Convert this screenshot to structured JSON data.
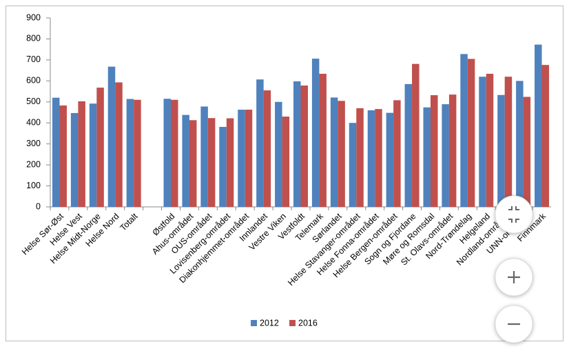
{
  "chart_data": {
    "type": "bar",
    "categories": [
      "Helse Sør-Øst",
      "Helse Vest",
      "Helse Midt-Norge",
      "Helse Nord",
      "Totalt",
      null,
      "Østfold",
      "Ahus-området",
      "OUS-området",
      "Lovisenberg-området",
      "Diakonhjemmet-området",
      "Innlandet",
      "Vestre Viken",
      "Vestfoldt",
      "Telemark",
      "Sørlandet",
      "Helse Stavanger-området",
      "Helse Fonna-området",
      "Helse Bergen-området",
      "Sogn og Fjordane",
      "Møre og Romsdal",
      "St. Olavs-området",
      "Nord-Trøndelag",
      "Helgeland",
      "Nordland-området",
      "UNN-området",
      "Finnmark"
    ],
    "series": [
      {
        "name": "2012",
        "color": "#4f81bd",
        "values": [
          520,
          447,
          492,
          668,
          514,
          null,
          515,
          438,
          478,
          381,
          463,
          607,
          500,
          598,
          706,
          521,
          400,
          460,
          448,
          585,
          474,
          489,
          728,
          620,
          533,
          600,
          773
        ]
      },
      {
        "name": "2016",
        "color": "#c0504d",
        "values": [
          483,
          503,
          568,
          593,
          510,
          null,
          510,
          413,
          423,
          422,
          463,
          555,
          430,
          578,
          634,
          505,
          470,
          466,
          508,
          681,
          532,
          535,
          705,
          634,
          620,
          524,
          676
        ]
      }
    ],
    "ylim": [
      0,
      900
    ],
    "yticks": [
      0,
      100,
      200,
      300,
      400,
      500,
      600,
      700,
      800,
      900
    ],
    "grid": false,
    "legend": "bottom"
  }
}
